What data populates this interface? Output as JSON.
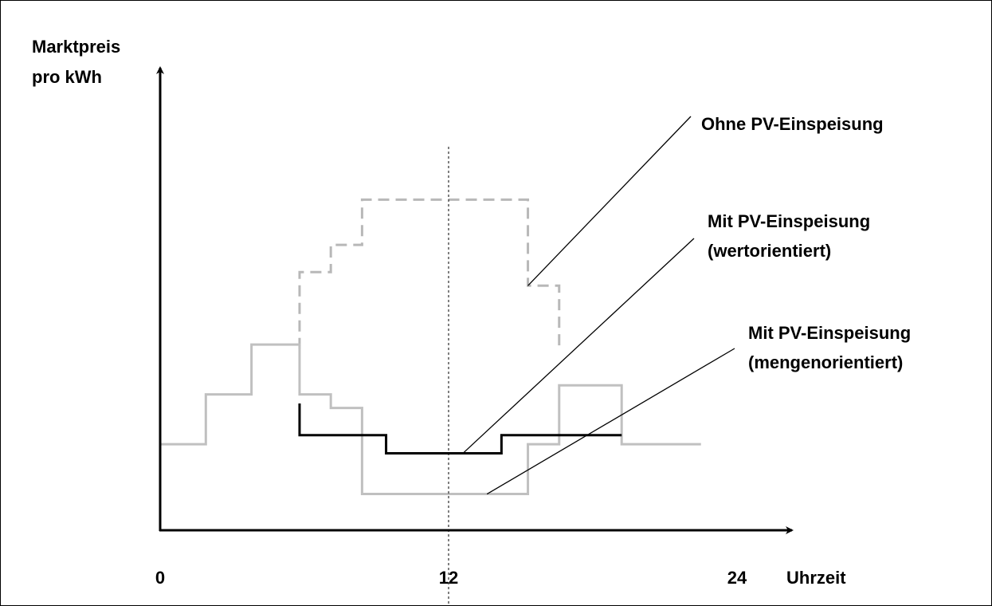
{
  "chart_data": {
    "type": "line",
    "title": "",
    "xlabel": "Uhrzeit",
    "ylabel_lines": [
      "Marktpreis",
      "pro kWh"
    ],
    "xlim": [
      0,
      24
    ],
    "ylim": [
      0,
      100
    ],
    "x_ticks": [
      {
        "value": 0,
        "label": "0"
      },
      {
        "value": 12,
        "label": "12"
      },
      {
        "value": 24,
        "label": "24"
      }
    ],
    "reference_line_x": 12,
    "grid": false,
    "series": [
      {
        "name": "Ohne PV-Einspeisung",
        "label_lines": [
          "Ohne PV-Einspeisung"
        ],
        "style": "dashed",
        "color": "#b8b8b8",
        "x": [
          5.8,
          5.8,
          7.1,
          7.1,
          8.4,
          8.4,
          15.3,
          15.3,
          16.6,
          16.6
        ],
        "y": [
          40,
          57,
          57,
          63,
          63,
          73,
          73,
          54,
          54,
          40
        ],
        "leader_from": [
          15.3,
          54
        ]
      },
      {
        "name": "Mit PV-Einspeisung (wertorientiert)",
        "label_lines": [
          "Mit PV-Einspeisung",
          "(wertorientiert)"
        ],
        "style": "solid",
        "color": "#000000",
        "x": [
          5.8,
          5.8,
          9.4,
          9.4,
          14.2,
          14.2,
          19.2
        ],
        "y": [
          28,
          21,
          21,
          17,
          17,
          21,
          21
        ],
        "leader_from": [
          12.6,
          17
        ]
      },
      {
        "name": "Mit PV-Einspeisung (mengenorientiert)",
        "label_lines": [
          "Mit PV-Einspeisung",
          "(mengenorientiert)"
        ],
        "style": "solid",
        "color": "#c0c0c0",
        "x": [
          0,
          1.9,
          1.9,
          3.8,
          3.8,
          5.8,
          5.8,
          7.1,
          7.1,
          8.4,
          8.4,
          15.3,
          15.3,
          16.6,
          16.6,
          19.2,
          19.2,
          22.5
        ],
        "y": [
          19,
          19,
          30,
          30,
          41,
          41,
          30,
          30,
          27,
          27,
          8,
          8,
          19,
          19,
          32,
          32,
          19,
          19
        ],
        "leader_from": [
          13.6,
          8
        ]
      }
    ]
  }
}
